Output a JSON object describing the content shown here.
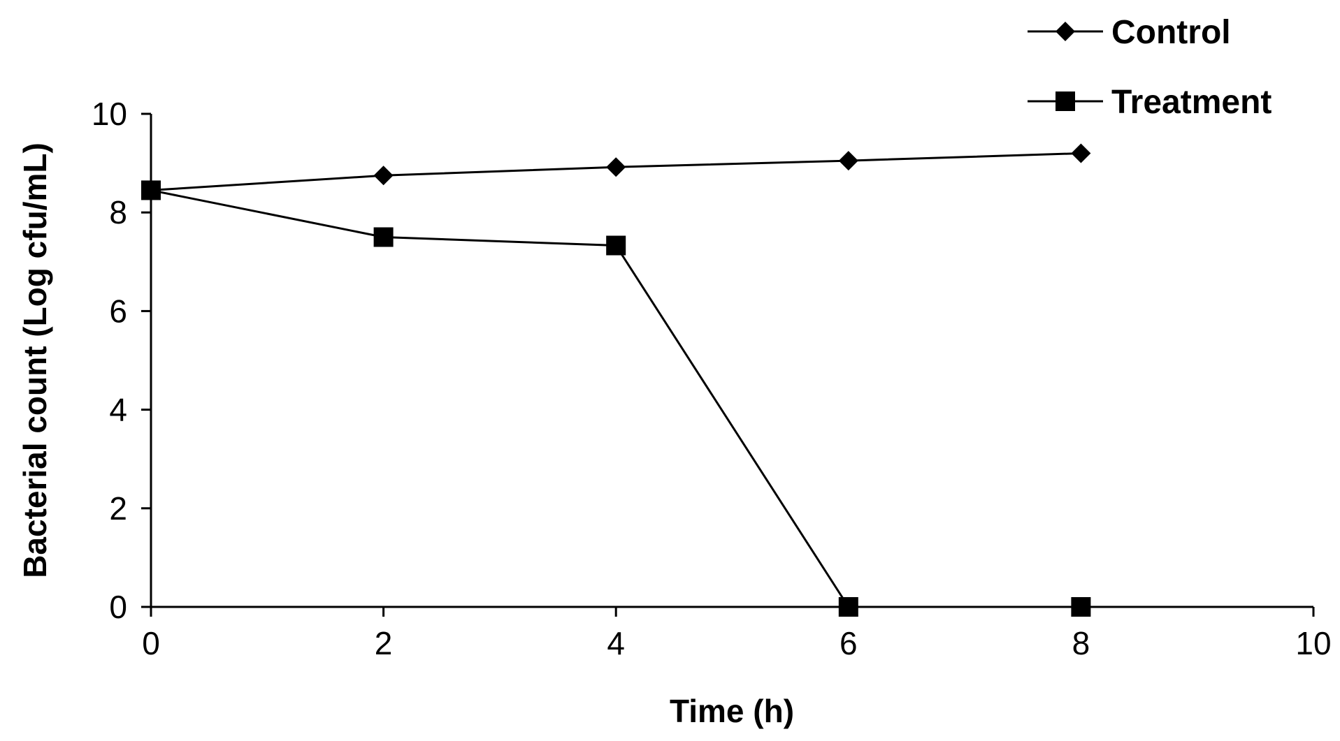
{
  "chart_data": {
    "type": "line",
    "title": "",
    "xlabel": "Time (h)",
    "ylabel": "Bacterial count (Log cfu/mL)",
    "xlim": [
      0,
      10
    ],
    "ylim": [
      0,
      10
    ],
    "xticks": [
      0,
      2,
      4,
      6,
      8,
      10
    ],
    "yticks": [
      0,
      2,
      4,
      6,
      8,
      10
    ],
    "grid": false,
    "legend_position": "top-right",
    "series": [
      {
        "name": "Control",
        "marker": "diamond",
        "color": "#000000",
        "x": [
          0,
          2,
          4,
          6,
          8
        ],
        "y": [
          8.45,
          8.75,
          8.92,
          9.05,
          9.2
        ]
      },
      {
        "name": "Treatment",
        "marker": "square",
        "color": "#000000",
        "x": [
          0,
          2,
          4,
          6,
          8
        ],
        "y": [
          8.45,
          7.5,
          7.33,
          0,
          0
        ]
      }
    ]
  }
}
